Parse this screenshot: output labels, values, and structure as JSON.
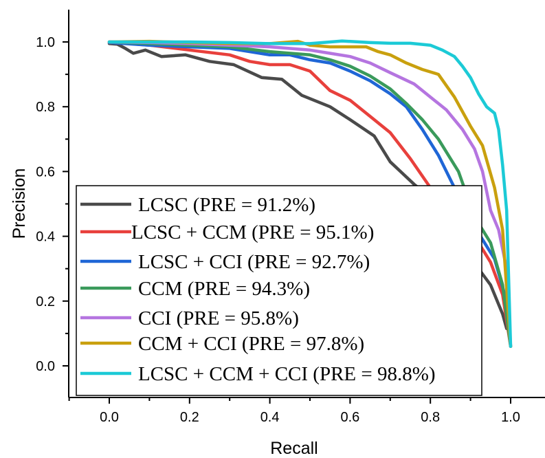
{
  "chart_data": {
    "type": "line",
    "title": "",
    "xlabel": "Recall",
    "ylabel": "Precision",
    "xlim": [
      -0.1,
      1.1
    ],
    "ylim": [
      -0.1,
      1.1
    ],
    "xticks": [
      "0.0",
      "0.2",
      "0.4",
      "0.6",
      "0.8",
      "1.0"
    ],
    "yticks": [
      "0.0",
      "0.2",
      "0.4",
      "0.6",
      "0.8",
      "1.0"
    ],
    "grid": false,
    "legend_position": "lower-left",
    "series": [
      {
        "name": "LCSC (PRE = 91.2%)",
        "color": "#4a4a4a",
        "x": [
          0.0,
          0.02,
          0.04,
          0.06,
          0.09,
          0.13,
          0.19,
          0.25,
          0.31,
          0.38,
          0.43,
          0.48,
          0.55,
          0.6,
          0.66,
          0.7,
          0.76,
          0.82,
          0.88,
          0.92,
          0.95,
          0.98,
          0.99
        ],
        "y": [
          0.995,
          0.993,
          0.98,
          0.965,
          0.975,
          0.955,
          0.96,
          0.94,
          0.93,
          0.89,
          0.885,
          0.835,
          0.8,
          0.76,
          0.71,
          0.63,
          0.56,
          0.5,
          0.38,
          0.3,
          0.25,
          0.16,
          0.115
        ]
      },
      {
        "name": "LCSC + CCM (PRE = 95.1%)",
        "color": "#e8403c",
        "x": [
          0.0,
          0.05,
          0.1,
          0.2,
          0.3,
          0.35,
          0.4,
          0.45,
          0.5,
          0.55,
          0.6,
          0.65,
          0.7,
          0.75,
          0.8,
          0.85,
          0.88,
          0.92,
          0.95,
          0.98,
          1.0
        ],
        "y": [
          0.998,
          0.995,
          0.99,
          0.975,
          0.96,
          0.94,
          0.93,
          0.93,
          0.91,
          0.85,
          0.82,
          0.77,
          0.72,
          0.64,
          0.55,
          0.48,
          0.45,
          0.38,
          0.32,
          0.22,
          0.06
        ]
      },
      {
        "name": "LCSC + CCI (PRE = 92.7%)",
        "color": "#1f66d6",
        "x": [
          0.0,
          0.1,
          0.2,
          0.3,
          0.4,
          0.45,
          0.5,
          0.55,
          0.6,
          0.65,
          0.7,
          0.74,
          0.78,
          0.82,
          0.86,
          0.9,
          0.93,
          0.96,
          0.99,
          1.0
        ],
        "y": [
          0.998,
          0.99,
          0.985,
          0.98,
          0.96,
          0.96,
          0.945,
          0.935,
          0.91,
          0.88,
          0.84,
          0.8,
          0.73,
          0.65,
          0.55,
          0.45,
          0.39,
          0.33,
          0.2,
          0.06
        ]
      },
      {
        "name": "CCM (PRE = 94.3%)",
        "color": "#3a9a5b",
        "x": [
          0.0,
          0.1,
          0.2,
          0.3,
          0.4,
          0.5,
          0.55,
          0.6,
          0.65,
          0.7,
          0.74,
          0.78,
          0.82,
          0.85,
          0.87,
          0.89,
          0.92,
          0.95,
          0.98,
          1.0
        ],
        "y": [
          1.0,
          0.995,
          0.99,
          0.985,
          0.97,
          0.96,
          0.945,
          0.925,
          0.895,
          0.855,
          0.81,
          0.76,
          0.7,
          0.64,
          0.6,
          0.53,
          0.44,
          0.38,
          0.25,
          0.06
        ]
      },
      {
        "name": "CCI (PRE = 95.8%)",
        "color": "#b575e0",
        "x": [
          0.0,
          0.1,
          0.2,
          0.3,
          0.4,
          0.5,
          0.55,
          0.6,
          0.65,
          0.7,
          0.76,
          0.8,
          0.84,
          0.88,
          0.91,
          0.93,
          0.95,
          0.97,
          0.99,
          1.0
        ],
        "y": [
          1.0,
          0.998,
          0.995,
          0.99,
          0.985,
          0.975,
          0.965,
          0.955,
          0.935,
          0.905,
          0.87,
          0.83,
          0.79,
          0.73,
          0.67,
          0.6,
          0.48,
          0.42,
          0.3,
          0.06
        ]
      },
      {
        "name": "CCM + CCI (PRE = 97.8%)",
        "color": "#c9a00e",
        "x": [
          0.0,
          0.1,
          0.2,
          0.3,
          0.4,
          0.47,
          0.5,
          0.55,
          0.6,
          0.64,
          0.67,
          0.7,
          0.74,
          0.78,
          0.82,
          0.86,
          0.9,
          0.93,
          0.96,
          0.98,
          1.0
        ],
        "y": [
          1.0,
          1.002,
          0.998,
          0.995,
          0.995,
          1.002,
          0.99,
          0.985,
          0.985,
          0.985,
          0.97,
          0.96,
          0.935,
          0.915,
          0.9,
          0.83,
          0.74,
          0.68,
          0.55,
          0.42,
          0.06
        ]
      },
      {
        "name": "LCSC + CCM + CCI (PRE = 98.8%)",
        "color": "#1ccad6",
        "x": [
          0.0,
          0.1,
          0.2,
          0.3,
          0.4,
          0.5,
          0.58,
          0.65,
          0.7,
          0.75,
          0.8,
          0.83,
          0.86,
          0.88,
          0.9,
          0.92,
          0.94,
          0.96,
          0.97,
          0.98,
          0.99,
          1.0
        ],
        "y": [
          1.0,
          1.0,
          1.0,
          0.998,
          0.995,
          0.995,
          1.003,
          0.998,
          0.996,
          0.996,
          0.99,
          0.975,
          0.955,
          0.925,
          0.89,
          0.84,
          0.8,
          0.78,
          0.73,
          0.62,
          0.48,
          0.06
        ]
      }
    ]
  }
}
